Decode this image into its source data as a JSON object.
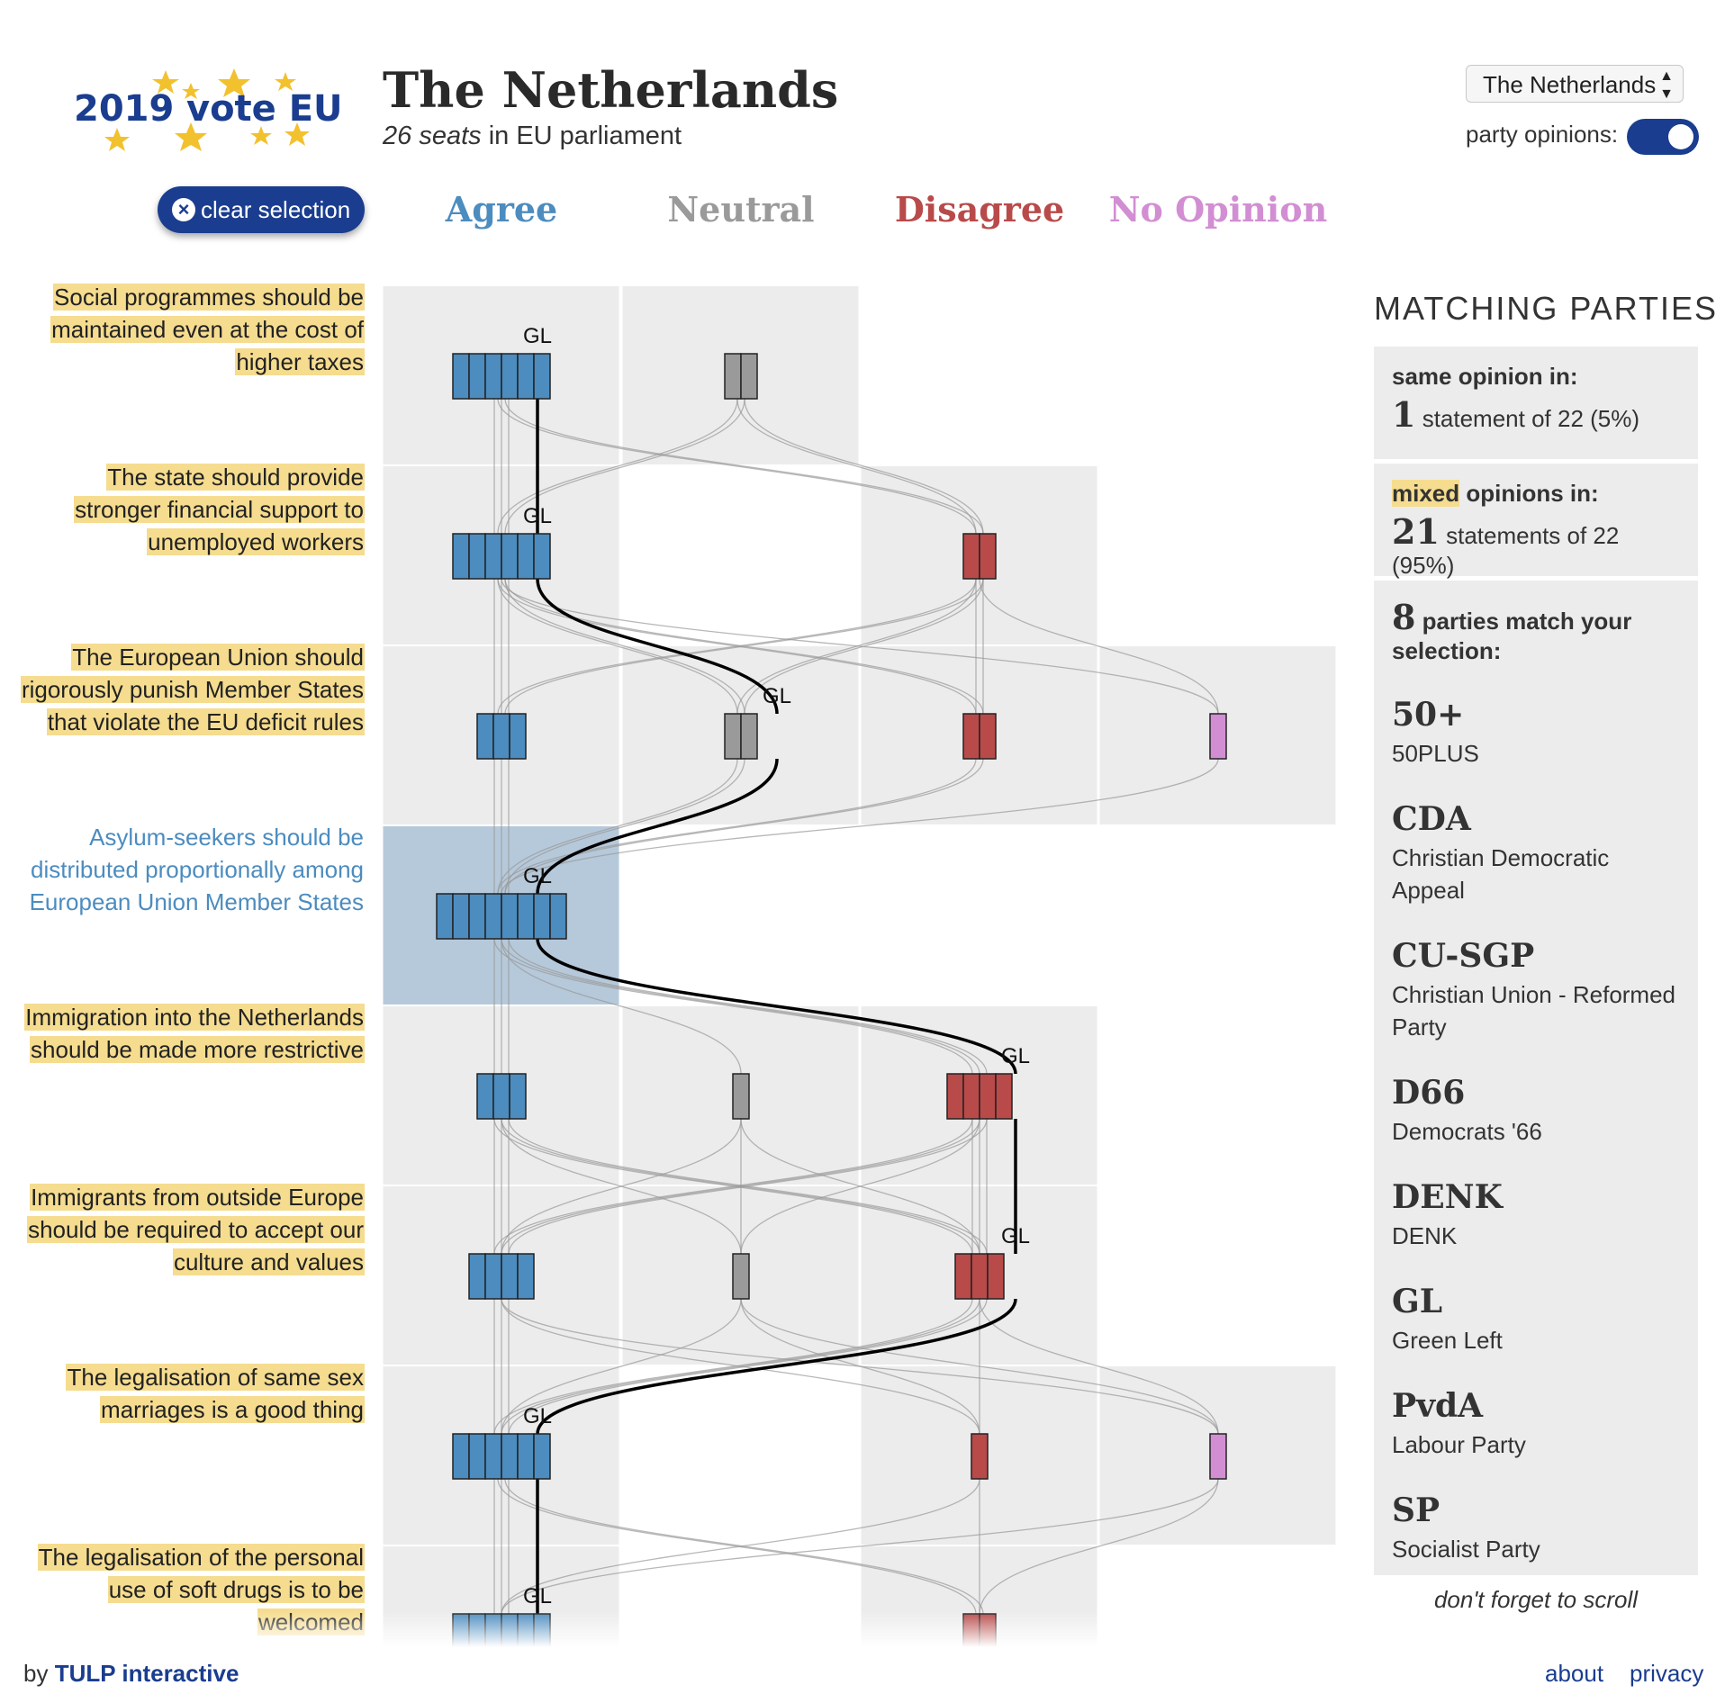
{
  "logo": {
    "year": "2019",
    "text": "vote EU"
  },
  "header": {
    "title": "The Netherlands",
    "seats": "26 seats",
    "seats_suffix": "in EU parliament"
  },
  "controls": {
    "country_selected": "The Netherlands",
    "toggle_label": "party opinions:",
    "toggle_on": true,
    "clear_label": "clear selection"
  },
  "columns": [
    {
      "label": "Agree",
      "color": "#4c8cbf"
    },
    {
      "label": "Neutral",
      "color": "#9a9a9a"
    },
    {
      "label": "Disagree",
      "color": "#b94a4a"
    },
    {
      "label": "No Opinion",
      "color": "#d28ed2"
    }
  ],
  "statements": [
    {
      "text": "Social programmes should be maintained even at the cost of higher taxes",
      "selected": false,
      "groups": [
        {
          "col": 0,
          "n": 6
        },
        {
          "col": 1,
          "n": 2
        }
      ],
      "gl_col": 0
    },
    {
      "text": "The state should provide stronger financial support to unemployed workers",
      "selected": false,
      "groups": [
        {
          "col": 0,
          "n": 6
        },
        {
          "col": 2,
          "n": 2
        }
      ],
      "gl_col": 0
    },
    {
      "text": "The European Union should rigorously punish Member States that violate the EU deficit rules",
      "selected": false,
      "groups": [
        {
          "col": 0,
          "n": 3
        },
        {
          "col": 1,
          "n": 2
        },
        {
          "col": 2,
          "n": 2
        },
        {
          "col": 3,
          "n": 1
        }
      ],
      "gl_col": 1
    },
    {
      "text": "Asylum-seekers should be distributed proportionally among European Union Member States",
      "selected": true,
      "groups": [
        {
          "col": 0,
          "n": 8
        }
      ],
      "gl_col": 0
    },
    {
      "text": "Immigration into the Netherlands should be made more restrictive",
      "selected": false,
      "groups": [
        {
          "col": 0,
          "n": 3
        },
        {
          "col": 1,
          "n": 1
        },
        {
          "col": 2,
          "n": 4
        }
      ],
      "gl_col": 2
    },
    {
      "text": "Immigrants from outside Europe should be required to accept our culture and values",
      "selected": false,
      "groups": [
        {
          "col": 0,
          "n": 4
        },
        {
          "col": 1,
          "n": 1
        },
        {
          "col": 2,
          "n": 3
        }
      ],
      "gl_col": 2
    },
    {
      "text": "The legalisation of same sex marriages is a good thing",
      "selected": false,
      "groups": [
        {
          "col": 0,
          "n": 6
        },
        {
          "col": 2,
          "n": 1
        },
        {
          "col": 3,
          "n": 1
        }
      ],
      "gl_col": 0
    },
    {
      "text": "The legalisation of the personal use of soft drugs is to be welcomed",
      "selected": false,
      "groups": [
        {
          "col": 0,
          "n": 6
        },
        {
          "col": 2,
          "n": 2
        }
      ],
      "gl_col": 0
    }
  ],
  "gl_label": "GL",
  "panel": {
    "title": "MATCHING PARTIES",
    "same_label": "same opinion in:",
    "same_count": "1",
    "same_text": "statement of 22 (5%)",
    "mixed_word": "mixed",
    "mixed_label": " opinions in:",
    "mixed_count": "21",
    "mixed_text": "statements of 22 (95%)",
    "match_count": "8",
    "match_text": " parties match your selection:",
    "parties": [
      {
        "abbr": "50+",
        "name": "50PLUS"
      },
      {
        "abbr": "CDA",
        "name": "Christian Democratic Appeal"
      },
      {
        "abbr": "CU-SGP",
        "name": "Christian Union - Reformed Party"
      },
      {
        "abbr": "D66",
        "name": "Democrats '66"
      },
      {
        "abbr": "DENK",
        "name": "DENK"
      },
      {
        "abbr": "GL",
        "name": "Green Left"
      },
      {
        "abbr": "PvdA",
        "name": "Labour Party"
      },
      {
        "abbr": "SP",
        "name": "Socialist Party"
      }
    ],
    "scroll_hint": "don't forget to scroll"
  },
  "footer": {
    "by": "by",
    "brand": "TULP interactive",
    "about": "about",
    "privacy": "privacy"
  }
}
